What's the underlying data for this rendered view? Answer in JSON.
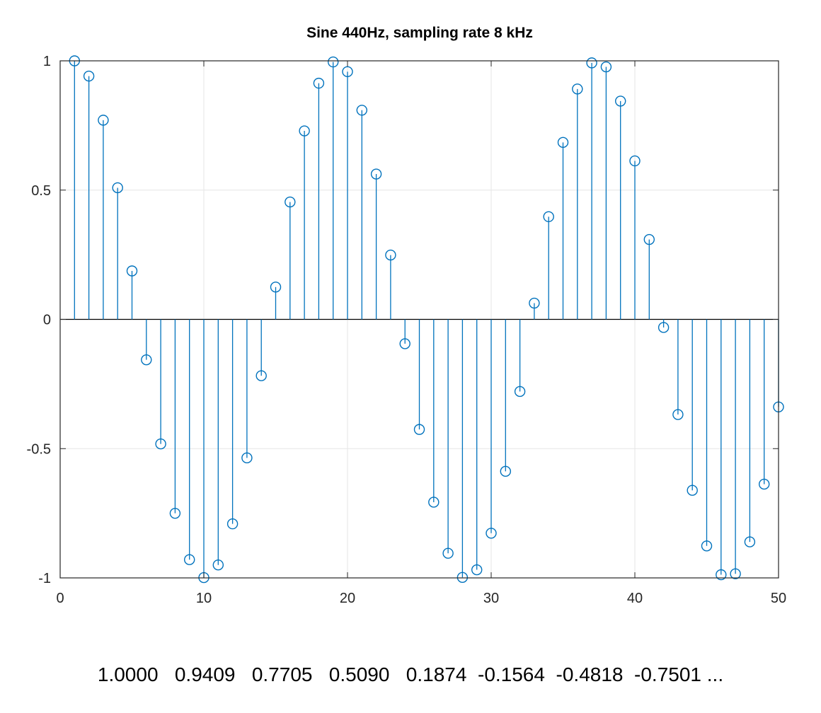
{
  "chart_data": {
    "type": "stem",
    "title": "Sine 440Hz, sampling rate 8 kHz",
    "xlabel": "",
    "ylabel": "",
    "xlim": [
      0,
      50
    ],
    "ylim": [
      -1,
      1
    ],
    "x_ticks": [
      0,
      10,
      20,
      30,
      40,
      50
    ],
    "x_tick_labels": [
      "0",
      "10",
      "20",
      "30",
      "40",
      "50"
    ],
    "y_ticks": [
      1,
      0.5,
      0,
      -0.5,
      -1
    ],
    "y_tick_labels": [
      "1",
      "0.5",
      "0",
      "-0.5",
      "-1"
    ],
    "grid": true,
    "legend": "none",
    "series": [
      {
        "color": "#0072bd",
        "marker": "circle",
        "x": [
          1,
          2,
          3,
          4,
          5,
          6,
          7,
          8,
          9,
          10,
          11,
          12,
          13,
          14,
          15,
          16,
          17,
          18,
          19,
          20,
          21,
          22,
          23,
          24,
          25,
          26,
          27,
          28,
          29,
          30,
          31,
          32,
          33,
          34,
          35,
          36,
          37,
          38,
          39,
          40,
          41,
          42,
          43,
          44,
          45,
          46,
          47,
          48,
          49,
          50
        ],
        "values": [
          1.0,
          0.9409,
          0.7705,
          0.509,
          0.1874,
          -0.1564,
          -0.4818,
          -0.7501,
          -0.9295,
          -0.9989,
          -0.95,
          -0.791,
          -0.5358,
          -0.2181,
          0.125,
          0.454,
          0.729,
          0.9135,
          0.9956,
          0.958,
          0.809,
          0.5621,
          0.2487,
          -0.0941,
          -0.4258,
          -0.7071,
          -0.9048,
          -0.998,
          -0.9686,
          -0.8271,
          -0.5878,
          -0.279,
          0.0628,
          0.3971,
          0.6845,
          0.891,
          0.9921,
          0.9766,
          0.8443,
          0.6129,
          0.309,
          -0.0314,
          -0.3681,
          -0.6613,
          -0.8763,
          -0.9877,
          -0.9842,
          -0.8607,
          -0.6374,
          -0.3387
        ]
      }
    ]
  },
  "caption": {
    "text": "1.0000   0.9409   0.7705   0.5090   0.1874  -0.1564  -0.4818  -0.7501 ..."
  }
}
